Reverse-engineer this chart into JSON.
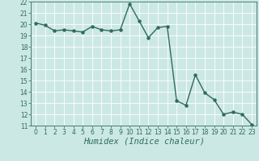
{
  "x": [
    0,
    1,
    2,
    3,
    4,
    5,
    6,
    7,
    8,
    9,
    10,
    11,
    12,
    13,
    14,
    15,
    16,
    17,
    18,
    19,
    20,
    21,
    22,
    23
  ],
  "y": [
    20.1,
    19.9,
    19.4,
    19.5,
    19.4,
    19.3,
    19.8,
    19.5,
    19.4,
    19.5,
    21.8,
    20.3,
    18.8,
    19.7,
    19.8,
    13.2,
    12.8,
    15.5,
    13.9,
    13.3,
    12.0,
    12.2,
    12.0,
    11.1
  ],
  "line_color": "#2e6b5e",
  "marker_color": "#2e6b5e",
  "bg_color": "#cce8e4",
  "grid_color": "#ffffff",
  "xlabel": "Humidex (Indice chaleur)",
  "xlabel_color": "#2e6b5e",
  "ylim": [
    11,
    22
  ],
  "xlim": [
    -0.5,
    23.5
  ],
  "yticks": [
    11,
    12,
    13,
    14,
    15,
    16,
    17,
    18,
    19,
    20,
    21,
    22
  ],
  "xticks": [
    0,
    1,
    2,
    3,
    4,
    5,
    6,
    7,
    8,
    9,
    10,
    11,
    12,
    13,
    14,
    15,
    16,
    17,
    18,
    19,
    20,
    21,
    22,
    23
  ],
  "tick_fontsize": 5.5,
  "xlabel_fontsize": 7.5,
  "marker_size": 2.2,
  "line_width": 1.0
}
